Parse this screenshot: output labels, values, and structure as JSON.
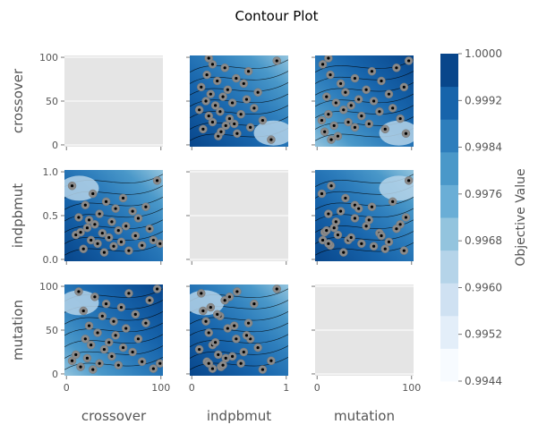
{
  "chart_data": {
    "type": "contour",
    "title": "Contour Plot",
    "params": [
      "crossover",
      "indpbmut",
      "mutation"
    ],
    "ranges": {
      "crossover": [
        0,
        100
      ],
      "indpbmut": [
        0,
        1
      ],
      "mutation": [
        0,
        100
      ]
    },
    "ticks": {
      "crossover": [
        0,
        50,
        100
      ],
      "indpbmut": [
        0.0,
        0.5,
        1.0
      ],
      "mutation": [
        0,
        50,
        100
      ]
    },
    "xtick_labels": {
      "crossover": [
        "0",
        "100"
      ],
      "indpbmut": [
        "0",
        "1"
      ],
      "mutation": [
        "0",
        "100"
      ]
    },
    "ytick_labels": {
      "crossover": [
        "0",
        "50",
        "100"
      ],
      "indpbmut": [
        "0.0",
        "0.5",
        "1.0"
      ],
      "mutation": [
        "0",
        "50",
        "100"
      ]
    },
    "colorbar": {
      "label": "Objective Value",
      "min": 0.9944,
      "max": 1.0,
      "ticks": [
        "1.0000",
        "0.9992",
        "0.9984",
        "0.9976",
        "0.9968",
        "0.9960",
        "0.9952",
        "0.9944"
      ],
      "colormap": "Blues"
    },
    "grid": true,
    "trial_points": [
      {
        "crossover": 6,
        "indpbmut": 0.84,
        "mutation": 15
      },
      {
        "crossover": 10,
        "indpbmut": 0.28,
        "mutation": 22
      },
      {
        "crossover": 13,
        "indpbmut": 0.48,
        "mutation": 94
      },
      {
        "crossover": 15,
        "indpbmut": 0.31,
        "mutation": 8
      },
      {
        "crossover": 18,
        "indpbmut": 0.12,
        "mutation": 72
      },
      {
        "crossover": 20,
        "indpbmut": 0.62,
        "mutation": 40
      },
      {
        "crossover": 22,
        "indpbmut": 0.36,
        "mutation": 18
      },
      {
        "crossover": 24,
        "indpbmut": 0.45,
        "mutation": 55
      },
      {
        "crossover": 26,
        "indpbmut": 0.22,
        "mutation": 33
      },
      {
        "crossover": 28,
        "indpbmut": 0.75,
        "mutation": 5
      },
      {
        "crossover": 30,
        "indpbmut": 0.4,
        "mutation": 88
      },
      {
        "crossover": 33,
        "indpbmut": 0.18,
        "mutation": 47
      },
      {
        "crossover": 35,
        "indpbmut": 0.52,
        "mutation": 12
      },
      {
        "crossover": 38,
        "indpbmut": 0.3,
        "mutation": 66
      },
      {
        "crossover": 40,
        "indpbmut": 0.08,
        "mutation": 28
      },
      {
        "crossover": 42,
        "indpbmut": 0.66,
        "mutation": 80
      },
      {
        "crossover": 45,
        "indpbmut": 0.25,
        "mutation": 36
      },
      {
        "crossover": 48,
        "indpbmut": 0.43,
        "mutation": 20
      },
      {
        "crossover": 50,
        "indpbmut": 0.15,
        "mutation": 60
      },
      {
        "crossover": 52,
        "indpbmut": 0.58,
        "mutation": 44
      },
      {
        "crossover": 55,
        "indpbmut": 0.33,
        "mutation": 10
      },
      {
        "crossover": 58,
        "indpbmut": 0.2,
        "mutation": 76
      },
      {
        "crossover": 60,
        "indpbmut": 0.7,
        "mutation": 30
      },
      {
        "crossover": 63,
        "indpbmut": 0.38,
        "mutation": 52
      },
      {
        "crossover": 66,
        "indpbmut": 0.1,
        "mutation": 92
      },
      {
        "crossover": 70,
        "indpbmut": 0.55,
        "mutation": 25
      },
      {
        "crossover": 73,
        "indpbmut": 0.27,
        "mutation": 68
      },
      {
        "crossover": 76,
        "indpbmut": 0.47,
        "mutation": 40
      },
      {
        "crossover": 80,
        "indpbmut": 0.16,
        "mutation": 14
      },
      {
        "crossover": 84,
        "indpbmut": 0.6,
        "mutation": 58
      },
      {
        "crossover": 88,
        "indpbmut": 0.35,
        "mutation": 84
      },
      {
        "crossover": 92,
        "indpbmut": 0.22,
        "mutation": 6
      },
      {
        "crossover": 96,
        "indpbmut": 0.9,
        "mutation": 97
      },
      {
        "crossover": 99,
        "indpbmut": 0.18,
        "mutation": 12
      }
    ]
  }
}
